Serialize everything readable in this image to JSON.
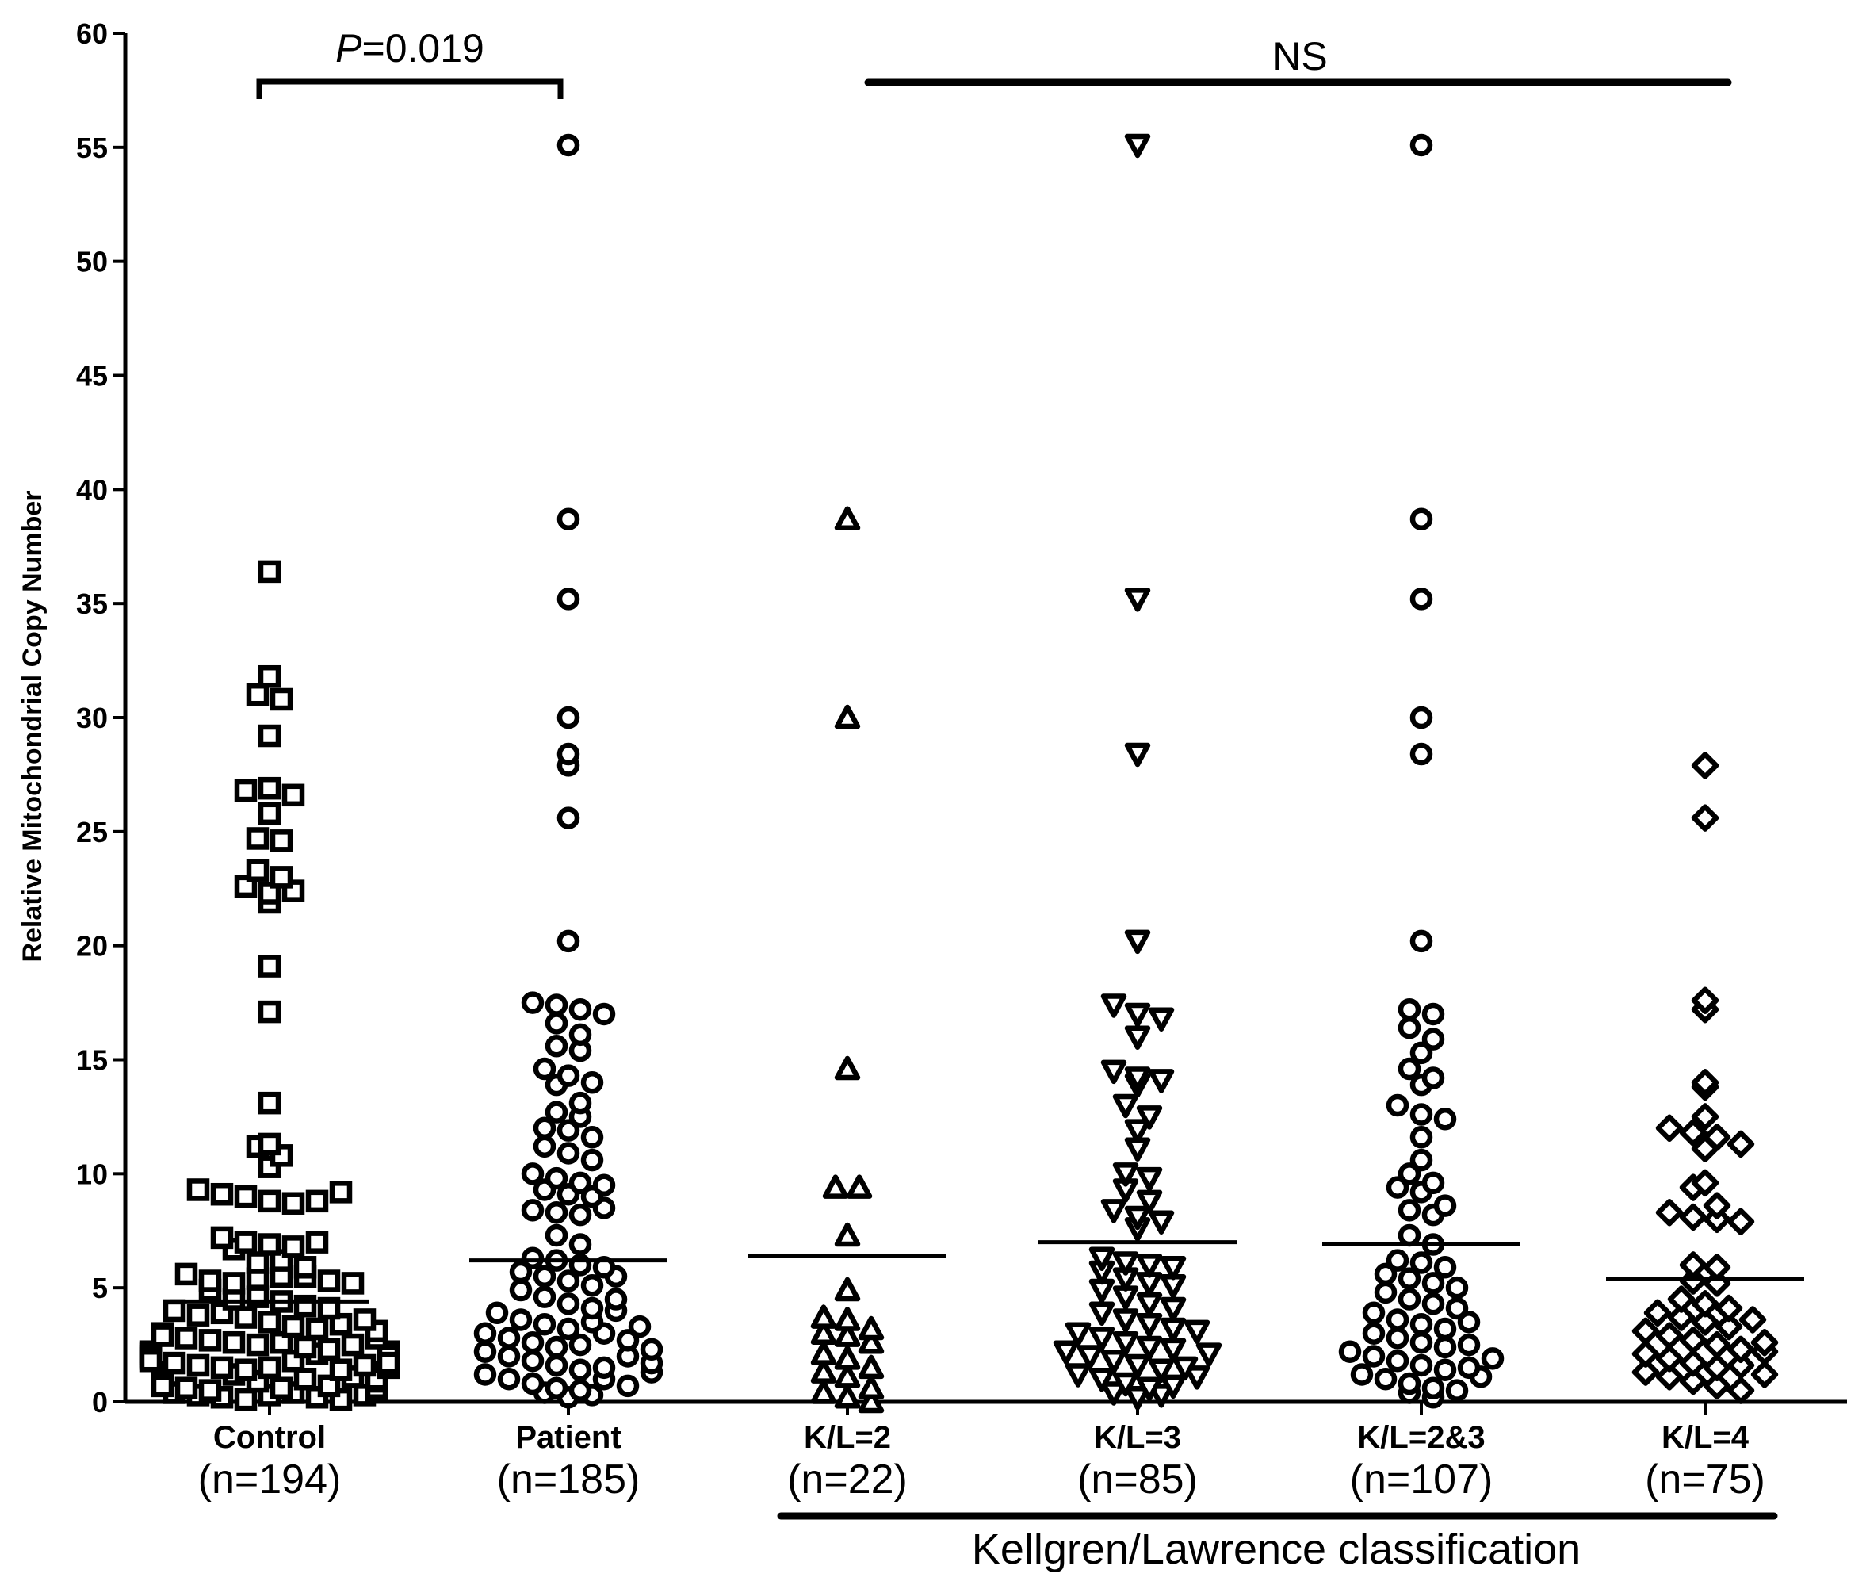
{
  "chart_data": {
    "type": "scatter",
    "ylabel": "Relative Mitochondrial Copy  Number",
    "ylim": [
      0,
      60
    ],
    "yticks": [
      0,
      5,
      10,
      15,
      20,
      25,
      30,
      35,
      40,
      45,
      50,
      55,
      60
    ],
    "groups": [
      {
        "name": "Control",
        "n_label": "(n=194)",
        "marker": "square",
        "mean": 4.4,
        "values": [
          36.4,
          31.8,
          31.0,
          30.8,
          29.2,
          26.8,
          26.9,
          26.6,
          25.8,
          24.7,
          24.6,
          23.3,
          23.0,
          22.6,
          22.3,
          22.4,
          21.9,
          19.1,
          17.1,
          13.1,
          11.3,
          11.2,
          10.8,
          10.3,
          9.3,
          9.1,
          9.0,
          8.8,
          8.7,
          8.8,
          9.2,
          7.2,
          7.0,
          6.9,
          6.7,
          6.8,
          7.0,
          6.1,
          6.2,
          5.9,
          5.6,
          5.3,
          5.2,
          5.4,
          5.5,
          5.5,
          5.3,
          5.2,
          4.9,
          4.5,
          4.6,
          4.4,
          4.2,
          4.0,
          3.8,
          3.9,
          4.1,
          3.7,
          3.5,
          3.3,
          3.2,
          3.4,
          3.6,
          3.0,
          2.9,
          2.8,
          2.7,
          2.6,
          2.5,
          2.6,
          2.4,
          2.2,
          2.1,
          2.3,
          2.0,
          1.9,
          1.8,
          1.7,
          1.6,
          1.5,
          1.4,
          1.3,
          1.2,
          1.1,
          1.0,
          0.9,
          0.8,
          0.7,
          0.6,
          0.5,
          0.4,
          0.3,
          0.2,
          0.1,
          1.5,
          1.2,
          0.9,
          0.6,
          0.3,
          1.8,
          2.1,
          1.0,
          0.7,
          0.4,
          1.4,
          1.1,
          0.8,
          0.5,
          0.2,
          1.6,
          1.3,
          2.5,
          2.2,
          0.1,
          1.9,
          2.8,
          3.1,
          0.6,
          0.9,
          1.2,
          1.5,
          0.3,
          2.0,
          1.7,
          1.0
        ]
      },
      {
        "name": "Patient",
        "n_label": "(n=185)",
        "marker": "circle",
        "mean": 6.2,
        "values": [
          55.1,
          38.7,
          35.2,
          30.0,
          28.4,
          27.9,
          25.6,
          20.2,
          17.5,
          17.4,
          17.2,
          17.0,
          16.6,
          16.1,
          15.6,
          15.4,
          14.6,
          14.3,
          14.0,
          13.9,
          13.1,
          12.7,
          12.5,
          12.0,
          11.9,
          11.6,
          11.2,
          10.9,
          10.6,
          10.0,
          9.8,
          9.6,
          9.5,
          9.3,
          9.1,
          9.0,
          8.4,
          8.3,
          8.2,
          8.5,
          7.3,
          6.9,
          6.3,
          6.2,
          6.0,
          5.9,
          5.7,
          5.5,
          5.3,
          5.1,
          4.9,
          4.6,
          4.3,
          4.1,
          3.9,
          3.6,
          3.4,
          3.2,
          3.0,
          2.8,
          2.6,
          2.4,
          2.2,
          2.0,
          1.8,
          1.6,
          1.4,
          1.2,
          1.0,
          0.8,
          0.6,
          0.4,
          0.2,
          3.5,
          2.5,
          1.5,
          0.5,
          3.0,
          2.0,
          1.0,
          4.5,
          5.5,
          4.0,
          2.7,
          1.7,
          0.7,
          3.3,
          2.3,
          1.3,
          0.3
        ]
      },
      {
        "name": "K/L=2",
        "n_label": "(n=22)",
        "marker": "triangle-up",
        "mean": 6.4,
        "values": [
          38.7,
          30.0,
          14.6,
          9.4,
          9.4,
          7.3,
          4.9,
          3.7,
          3.6,
          3.2,
          3.0,
          2.9,
          2.6,
          2.1,
          1.9,
          1.5,
          1.3,
          1.1,
          0.6,
          0.4,
          0.2,
          0.0
        ]
      },
      {
        "name": "K/L=3",
        "n_label": "(n=85)",
        "marker": "triangle-down",
        "mean": 7.0,
        "values": [
          55.1,
          35.2,
          28.4,
          20.2,
          17.4,
          17.0,
          16.8,
          16.0,
          14.5,
          14.2,
          14.1,
          13.9,
          13.0,
          12.5,
          11.9,
          11.1,
          10.0,
          9.8,
          9.3,
          8.8,
          8.4,
          8.1,
          7.9,
          7.6,
          6.3,
          6.1,
          6.0,
          5.9,
          5.7,
          5.4,
          5.2,
          5.1,
          4.9,
          4.6,
          4.3,
          4.1,
          3.9,
          3.6,
          3.4,
          3.2,
          3.0,
          2.8,
          2.6,
          2.4,
          2.2,
          2.0,
          1.8,
          1.6,
          1.4,
          1.2,
          1.0,
          0.8,
          0.6,
          0.4,
          0.2,
          2.3,
          1.5,
          0.7,
          3.1,
          2.1,
          1.1,
          0.3
        ]
      },
      {
        "name": "K/L=2&3",
        "n_label": "(n=107)",
        "marker": "circle",
        "mean": 6.9,
        "values": [
          55.1,
          38.7,
          35.2,
          30.0,
          28.4,
          20.2,
          17.2,
          17.0,
          16.4,
          15.9,
          15.3,
          14.6,
          14.2,
          13.9,
          13.0,
          12.6,
          12.4,
          11.6,
          10.6,
          10.0,
          9.6,
          9.4,
          9.2,
          8.6,
          8.4,
          8.2,
          7.3,
          6.9,
          6.2,
          6.1,
          5.9,
          5.6,
          5.4,
          5.2,
          5.0,
          4.8,
          4.5,
          4.3,
          4.1,
          3.9,
          3.6,
          3.4,
          3.2,
          3.0,
          2.8,
          2.6,
          2.4,
          2.2,
          2.0,
          1.8,
          1.6,
          1.4,
          1.2,
          1.0,
          0.8,
          0.6,
          0.4,
          0.2,
          2.5,
          1.5,
          0.5,
          3.5,
          1.9,
          1.1
        ]
      },
      {
        "name": "K/L=4",
        "n_label": "(n=75)",
        "marker": "diamond",
        "mean": 5.4,
        "values": [
          27.9,
          25.6,
          17.6,
          17.2,
          14.0,
          13.8,
          12.5,
          12.0,
          11.8,
          11.6,
          11.3,
          11.1,
          9.6,
          9.4,
          8.6,
          8.3,
          8.1,
          8.0,
          7.9,
          6.0,
          5.9,
          5.3,
          5.2,
          4.5,
          4.3,
          4.1,
          3.9,
          3.7,
          3.5,
          3.3,
          3.1,
          2.9,
          2.7,
          2.5,
          2.3,
          2.1,
          1.9,
          1.7,
          1.5,
          1.3,
          1.1,
          0.9,
          0.7,
          0.5,
          2.6,
          1.6,
          3.6,
          2.2,
          1.2
        ]
      }
    ],
    "annotations": [
      {
        "text_italic": "P",
        "text": "=0.019",
        "from_group": 0,
        "to_group": 1
      },
      {
        "text": "NS",
        "from_group": 2,
        "to_group": 5
      }
    ],
    "footer": {
      "text": "Kellgren/Lawrence classification",
      "from_group": 2,
      "to_group": 5
    }
  }
}
